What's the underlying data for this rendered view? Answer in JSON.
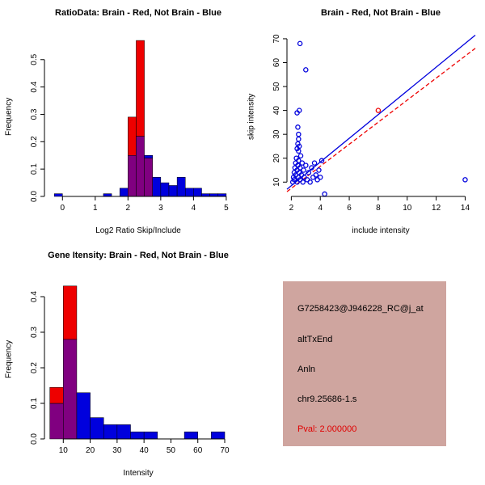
{
  "colors": {
    "red": "#ee0000",
    "blue": "#0000dd",
    "purple": "#800080",
    "box_bg": "#cfa59f",
    "pval": "#e00000",
    "axis": "#000000"
  },
  "chart_data": [
    {
      "type": "bar",
      "title": "RatioData: Brain - Red, Not Brain - Blue",
      "xlabel": "Log2 Ratio Skip/Include",
      "ylabel": "Frequency",
      "xlim": [
        -0.55,
        5.2
      ],
      "ylim": [
        0,
        0.585
      ],
      "xticks": [
        "0",
        "1",
        "2",
        "3",
        "4",
        "5"
      ],
      "yticks": [
        "0.0",
        "0.1",
        "0.2",
        "0.3",
        "0.4",
        "0.5"
      ],
      "bin_width": 0.25,
      "series": [
        {
          "name": "Brain (red)",
          "color": "red",
          "bins": [
            {
              "x": 2.0,
              "h": 0.29
            },
            {
              "x": 2.25,
              "h": 0.57
            },
            {
              "x": 2.5,
              "h": 0.14
            }
          ]
        },
        {
          "name": "Not Brain (blue)",
          "color": "blue",
          "bins": [
            {
              "x": -0.25,
              "h": 0.01
            },
            {
              "x": 1.25,
              "h": 0.01
            },
            {
              "x": 1.75,
              "h": 0.03
            },
            {
              "x": 2.0,
              "h": 0.15
            },
            {
              "x": 2.25,
              "h": 0.22
            },
            {
              "x": 2.5,
              "h": 0.15
            },
            {
              "x": 2.75,
              "h": 0.07
            },
            {
              "x": 3.0,
              "h": 0.05
            },
            {
              "x": 3.25,
              "h": 0.04
            },
            {
              "x": 3.5,
              "h": 0.07
            },
            {
              "x": 3.75,
              "h": 0.03
            },
            {
              "x": 4.0,
              "h": 0.03
            },
            {
              "x": 4.25,
              "h": 0.01
            },
            {
              "x": 4.5,
              "h": 0.01
            },
            {
              "x": 4.75,
              "h": 0.01
            }
          ]
        }
      ]
    },
    {
      "type": "scatter",
      "title": "Brain - Red, Not Brain - Blue",
      "xlabel": "include intensity",
      "ylabel": "skip intensity",
      "xlim": [
        1.7,
        14.7
      ],
      "ylim": [
        4,
        71
      ],
      "xticks": [
        "2",
        "4",
        "6",
        "8",
        "10",
        "12",
        "14"
      ],
      "yticks": [
        "10",
        "20",
        "30",
        "40",
        "50",
        "60",
        "70"
      ],
      "lines": [
        {
          "name": "not-brain-fit",
          "color": "blue",
          "style": "solid",
          "from": [
            1.7,
            7
          ],
          "to": [
            14.7,
            71.5
          ]
        },
        {
          "name": "brain-fit",
          "color": "red",
          "style": "dashed",
          "from": [
            1.7,
            6
          ],
          "to": [
            14.7,
            66
          ]
        }
      ],
      "series": [
        {
          "name": "Brain (red)",
          "color": "red",
          "points": [
            [
              8,
              40
            ]
          ]
        },
        {
          "name": "Not Brain (blue)",
          "color": "blue",
          "points": [
            [
              2.1,
              10
            ],
            [
              2.15,
              12
            ],
            [
              2.2,
              14
            ],
            [
              2.2,
              11
            ],
            [
              2.25,
              16
            ],
            [
              2.3,
              18
            ],
            [
              2.3,
              13
            ],
            [
              2.35,
              20
            ],
            [
              2.4,
              15
            ],
            [
              2.4,
              10
            ],
            [
              2.45,
              17
            ],
            [
              2.5,
              12
            ],
            [
              2.5,
              19
            ],
            [
              2.55,
              14
            ],
            [
              2.6,
              11
            ],
            [
              2.6,
              16
            ],
            [
              2.65,
              21
            ],
            [
              2.7,
              13
            ],
            [
              2.75,
              18
            ],
            [
              2.8,
              10
            ],
            [
              2.85,
              15
            ],
            [
              2.9,
              12
            ],
            [
              3,
              17
            ],
            [
              3.1,
              11
            ],
            [
              3.2,
              14
            ],
            [
              3.3,
              10
            ],
            [
              3.4,
              16
            ],
            [
              3.5,
              12
            ],
            [
              3.6,
              18
            ],
            [
              3.7,
              13
            ],
            [
              3.8,
              11
            ],
            [
              3.9,
              15
            ],
            [
              4,
              12
            ],
            [
              4.1,
              19
            ],
            [
              2.4,
              24
            ],
            [
              2.5,
              23
            ],
            [
              2.45,
              26
            ],
            [
              2.5,
              28
            ],
            [
              2.55,
              25
            ],
            [
              2.5,
              30
            ],
            [
              2.45,
              33
            ],
            [
              2.4,
              39
            ],
            [
              2.55,
              40
            ],
            [
              2.6,
              68
            ],
            [
              3,
              57
            ],
            [
              14,
              11
            ],
            [
              4.3,
              5
            ]
          ]
        }
      ]
    },
    {
      "type": "bar",
      "title": "Gene Itensity: Brain - Red, Not Brain - Blue",
      "xlabel": "Intensity",
      "ylabel": "Frequency",
      "xlim": [
        3,
        73
      ],
      "ylim": [
        0,
        0.45
      ],
      "xticks": [
        "10",
        "20",
        "30",
        "40",
        "50",
        "60",
        "70"
      ],
      "yticks": [
        "0.0",
        "0.1",
        "0.2",
        "0.3",
        "0.4"
      ],
      "bin_width": 5,
      "series": [
        {
          "name": "Brain (red)",
          "color": "red",
          "bins": [
            {
              "x": 5,
              "h": 0.145
            },
            {
              "x": 10,
              "h": 0.43
            }
          ]
        },
        {
          "name": "Not Brain (blue)",
          "color": "blue",
          "bins": [
            {
              "x": 5,
              "h": 0.1
            },
            {
              "x": 10,
              "h": 0.28
            },
            {
              "x": 15,
              "h": 0.13
            },
            {
              "x": 20,
              "h": 0.06
            },
            {
              "x": 25,
              "h": 0.04
            },
            {
              "x": 30,
              "h": 0.04
            },
            {
              "x": 35,
              "h": 0.02
            },
            {
              "x": 40,
              "h": 0.02
            },
            {
              "x": 55,
              "h": 0.02
            },
            {
              "x": 65,
              "h": 0.02
            }
          ]
        }
      ]
    }
  ],
  "info_panel": {
    "lines": [
      {
        "text": "G7258423@J946228_RC@j_at",
        "color": "#000000"
      },
      {
        "text": "altTxEnd",
        "color": "#000000"
      },
      {
        "text": "Anln",
        "color": "#000000"
      },
      {
        "text": "chr9.25686-1.s",
        "color": "#000000"
      },
      {
        "text": "Pval: 2.000000",
        "color": "#e00000"
      }
    ]
  }
}
